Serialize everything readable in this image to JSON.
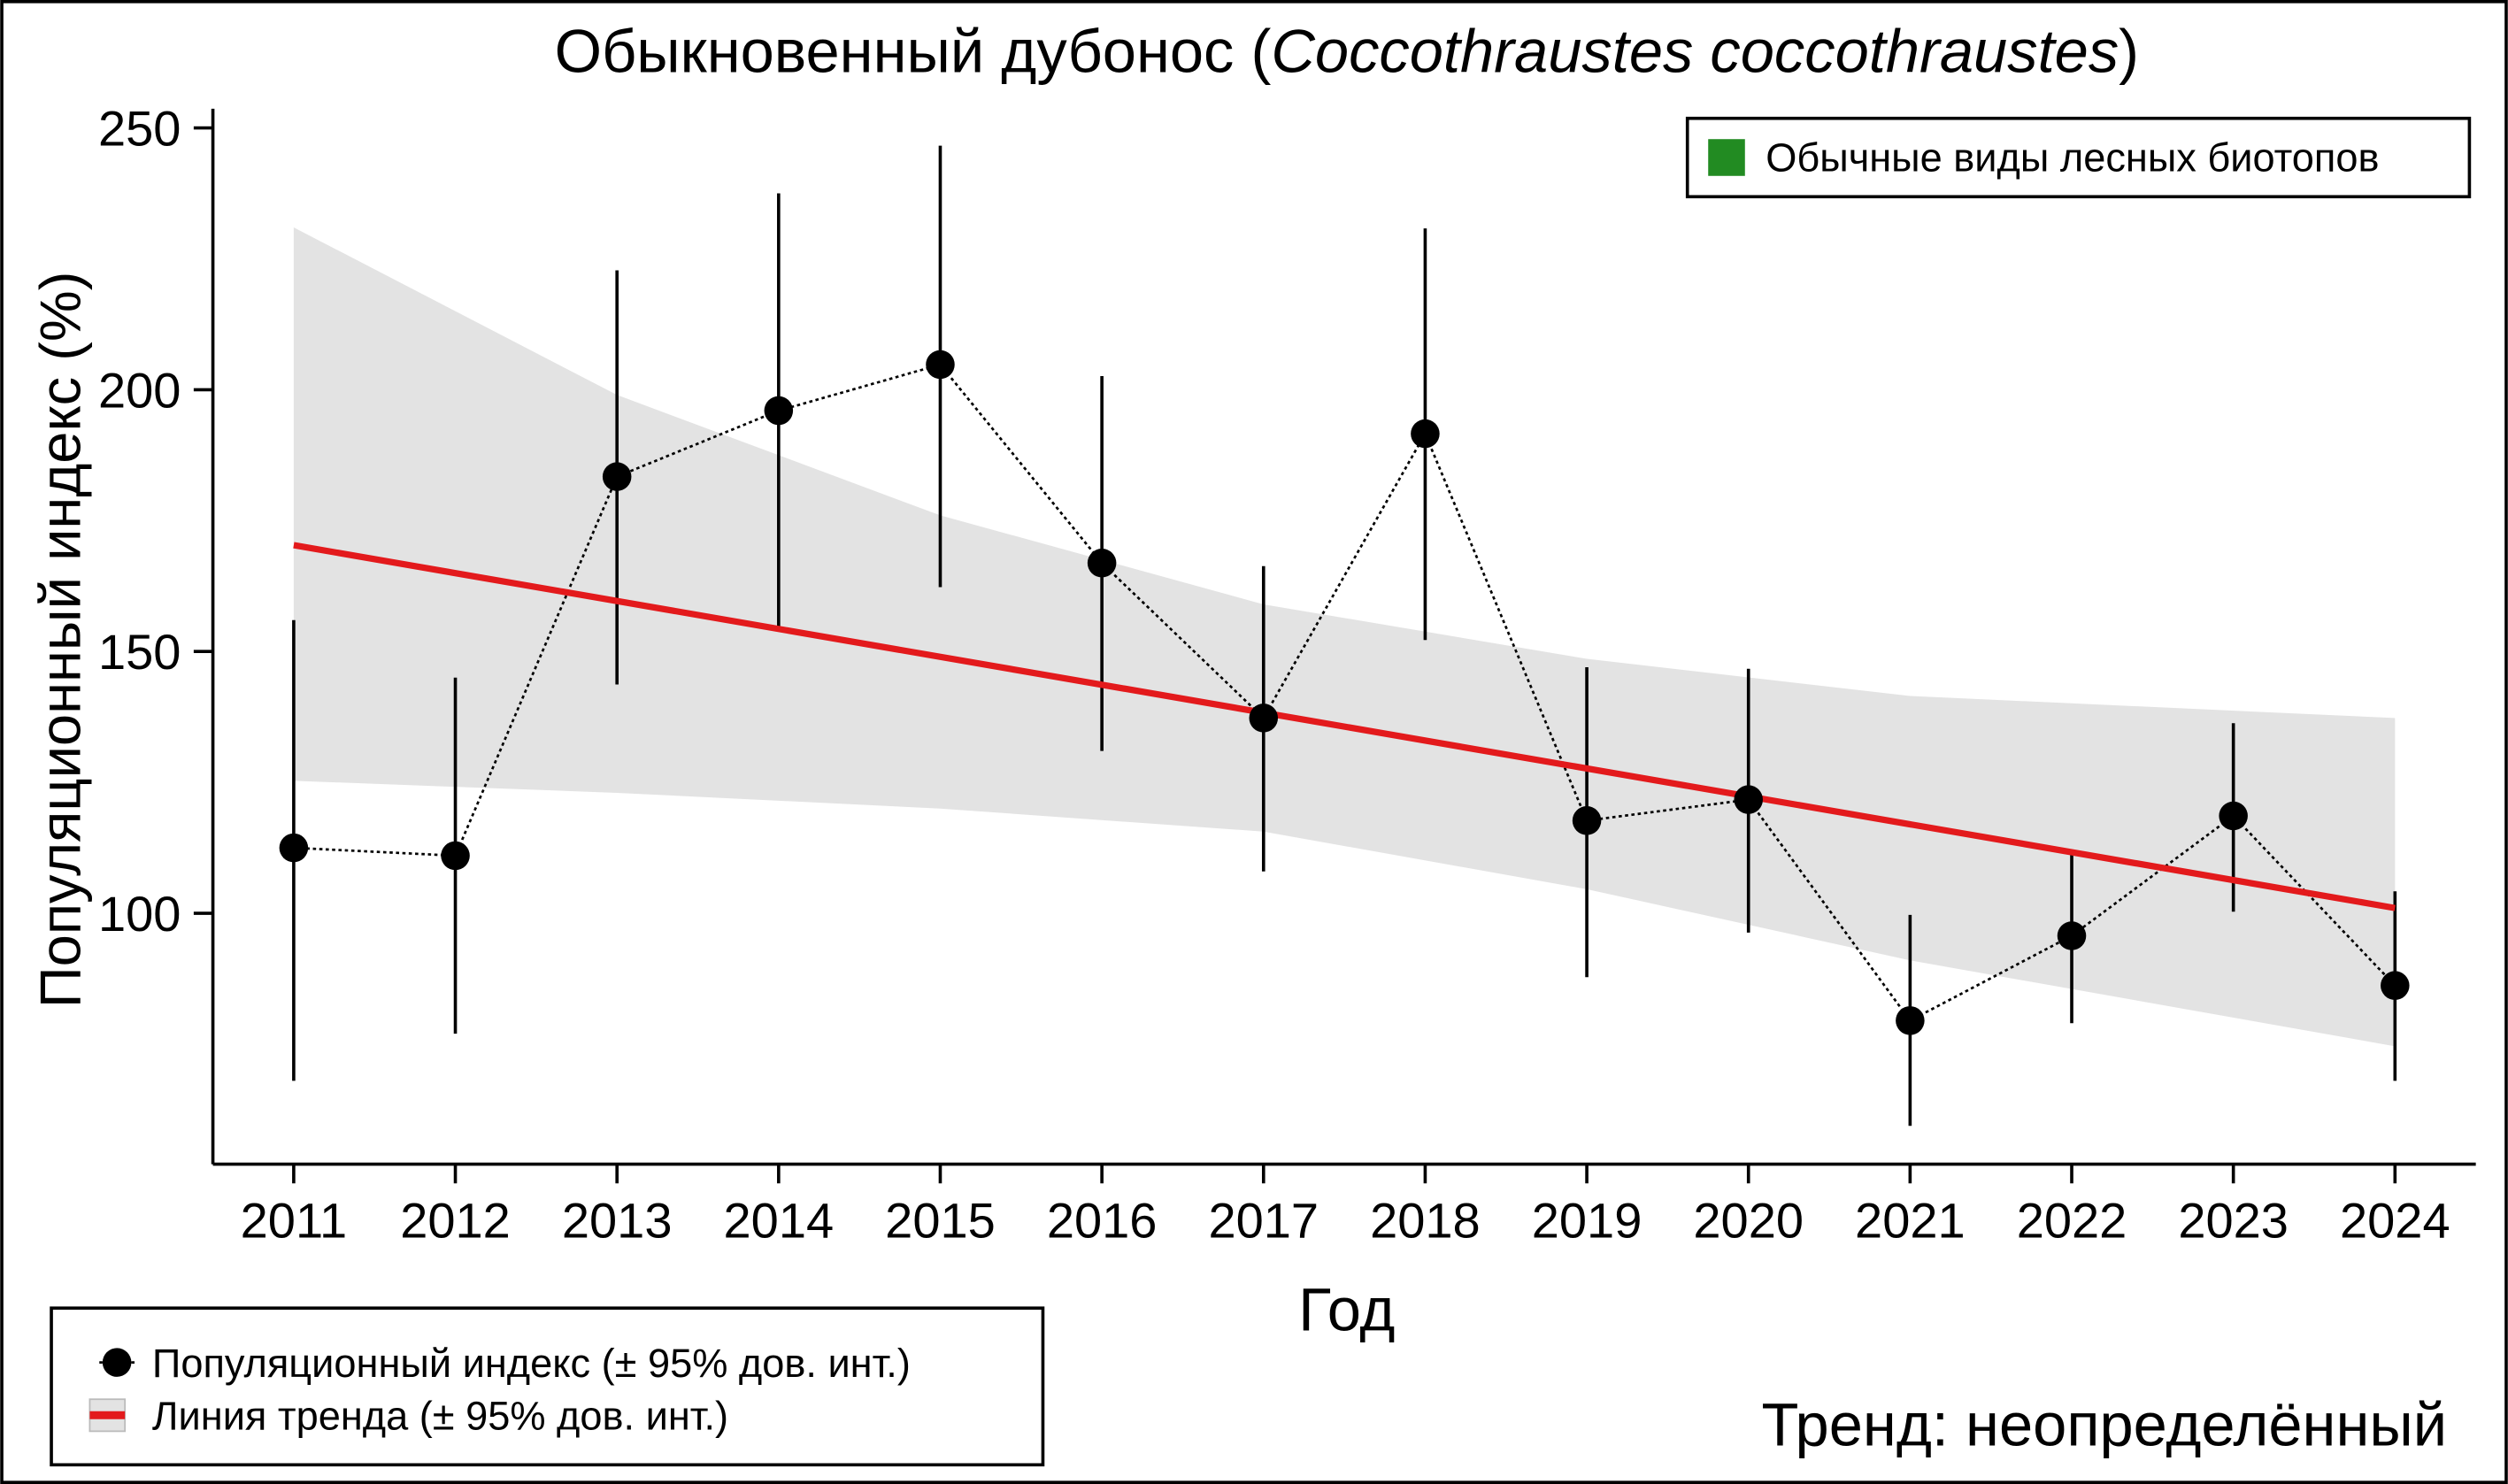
{
  "chart_data": {
    "type": "line",
    "title_prefix": "Обыкновенный дубонос (",
    "title_species": "Coccothraustes coccothraustes",
    "title_suffix": ")",
    "xlabel": "Год",
    "ylabel": "Популяционный индекс (%)",
    "xlim": [
      2010.5,
      2024.5
    ],
    "ylim": [
      52,
      253
    ],
    "yticks": [
      100,
      150,
      200,
      250
    ],
    "x": [
      2011,
      2012,
      2013,
      2014,
      2015,
      2016,
      2017,
      2018,
      2019,
      2020,
      2021,
      2022,
      2023,
      2024
    ],
    "series": [
      {
        "name": "Популяционный индекс (± 95% дов. инт.)",
        "values": [
          112.5,
          111,
          183.4,
          196,
          204.8,
          166.9,
          137.3,
          191.6,
          117.7,
          121.7,
          79.5,
          95.7,
          118.6,
          86.2
        ],
        "ci_upper": [
          156,
          145,
          222.8,
          237.5,
          246.6,
          202.6,
          166.3,
          230.8,
          147,
          146.7,
          99.7,
          111.6,
          136.3,
          104.2
        ],
        "ci_lower": [
          68,
          77,
          143.7,
          154,
          162.3,
          131,
          108,
          152.2,
          87.8,
          96.3,
          59.4,
          79,
          100.3,
          68
        ]
      }
    ],
    "trend": {
      "name": "Линия тренда (± 95% дов. инт.)",
      "start": 170.3,
      "end": 101,
      "band_x": [
        2011,
        2013,
        2015,
        2017,
        2019,
        2021,
        2024
      ],
      "band_upper": [
        231,
        199,
        176,
        159,
        148.6,
        141.5,
        137.3
      ],
      "band_lower": [
        125.3,
        123,
        120,
        115.6,
        104.6,
        91,
        74.6
      ]
    },
    "category_legend": {
      "label": "Обычные виды лесных биотопов",
      "color": "#228B22"
    },
    "trend_text": "Тренд: неопределённый",
    "colors": {
      "trend": "#e31a1c",
      "band": "#e3e3e3",
      "points": "#000000"
    }
  }
}
